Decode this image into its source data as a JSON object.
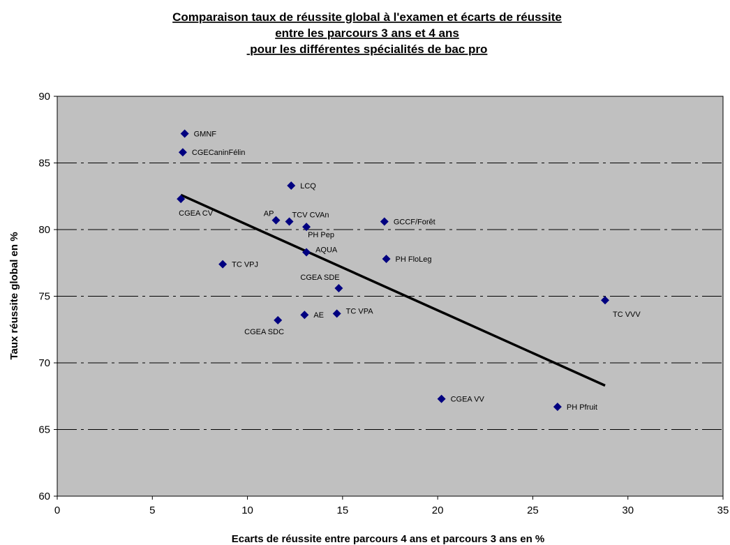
{
  "chart_data": {
    "type": "scatter",
    "title_lines": [
      "Comparaison taux de réussite global à l'examen et écarts de réussite",
      "entre les parcours 3 ans et 4 ans",
      " pour les différentes spécialités de bac pro"
    ],
    "xlabel": "Ecarts de réussite entre parcours 4 ans et parcours 3 ans en %",
    "ylabel": "Taux réussite global en %",
    "xlim": [
      0,
      35
    ],
    "ylim": [
      60,
      90
    ],
    "x_ticks": [
      0,
      5,
      10,
      15,
      20,
      25,
      30,
      35
    ],
    "y_ticks": [
      60,
      65,
      70,
      75,
      80,
      85,
      90
    ],
    "grid": "horizontal dashed",
    "plot_background": "#c0c0c0",
    "marker_color": "#000080",
    "trendline_color": "#000000",
    "points": [
      {
        "label": "GMNF",
        "x": 6.7,
        "y": 87.2
      },
      {
        "label": "CGECaninFélin",
        "x": 6.6,
        "y": 85.8
      },
      {
        "label": "CGEA CV",
        "x": 6.5,
        "y": 82.3
      },
      {
        "label": "LCQ",
        "x": 12.3,
        "y": 83.3
      },
      {
        "label": "AP",
        "x": 11.5,
        "y": 80.7
      },
      {
        "label": "TCV CVAn",
        "x": 12.2,
        "y": 80.6
      },
      {
        "label": "PH Pep",
        "x": 13.1,
        "y": 80.2
      },
      {
        "label": "GCCF/Forêt",
        "x": 17.2,
        "y": 80.6
      },
      {
        "label": "AQUA",
        "x": 13.1,
        "y": 78.3
      },
      {
        "label": "PH FloLeg",
        "x": 17.3,
        "y": 77.8
      },
      {
        "label": "TC VPJ",
        "x": 8.7,
        "y": 77.4
      },
      {
        "label": "CGEA SDE",
        "x": 14.8,
        "y": 75.6
      },
      {
        "label": "TC VVV",
        "x": 28.8,
        "y": 74.7
      },
      {
        "label": "AE",
        "x": 13.0,
        "y": 73.6
      },
      {
        "label": "TC VPA",
        "x": 14.7,
        "y": 73.7
      },
      {
        "label": "CGEA SDC",
        "x": 11.6,
        "y": 73.2
      },
      {
        "label": "CGEA VV",
        "x": 20.2,
        "y": 67.3
      },
      {
        "label": "PH Pfruit",
        "x": 26.3,
        "y": 66.7
      }
    ],
    "trendline": {
      "x": [
        6.5,
        28.8
      ],
      "y": [
        82.6,
        68.3
      ]
    }
  }
}
